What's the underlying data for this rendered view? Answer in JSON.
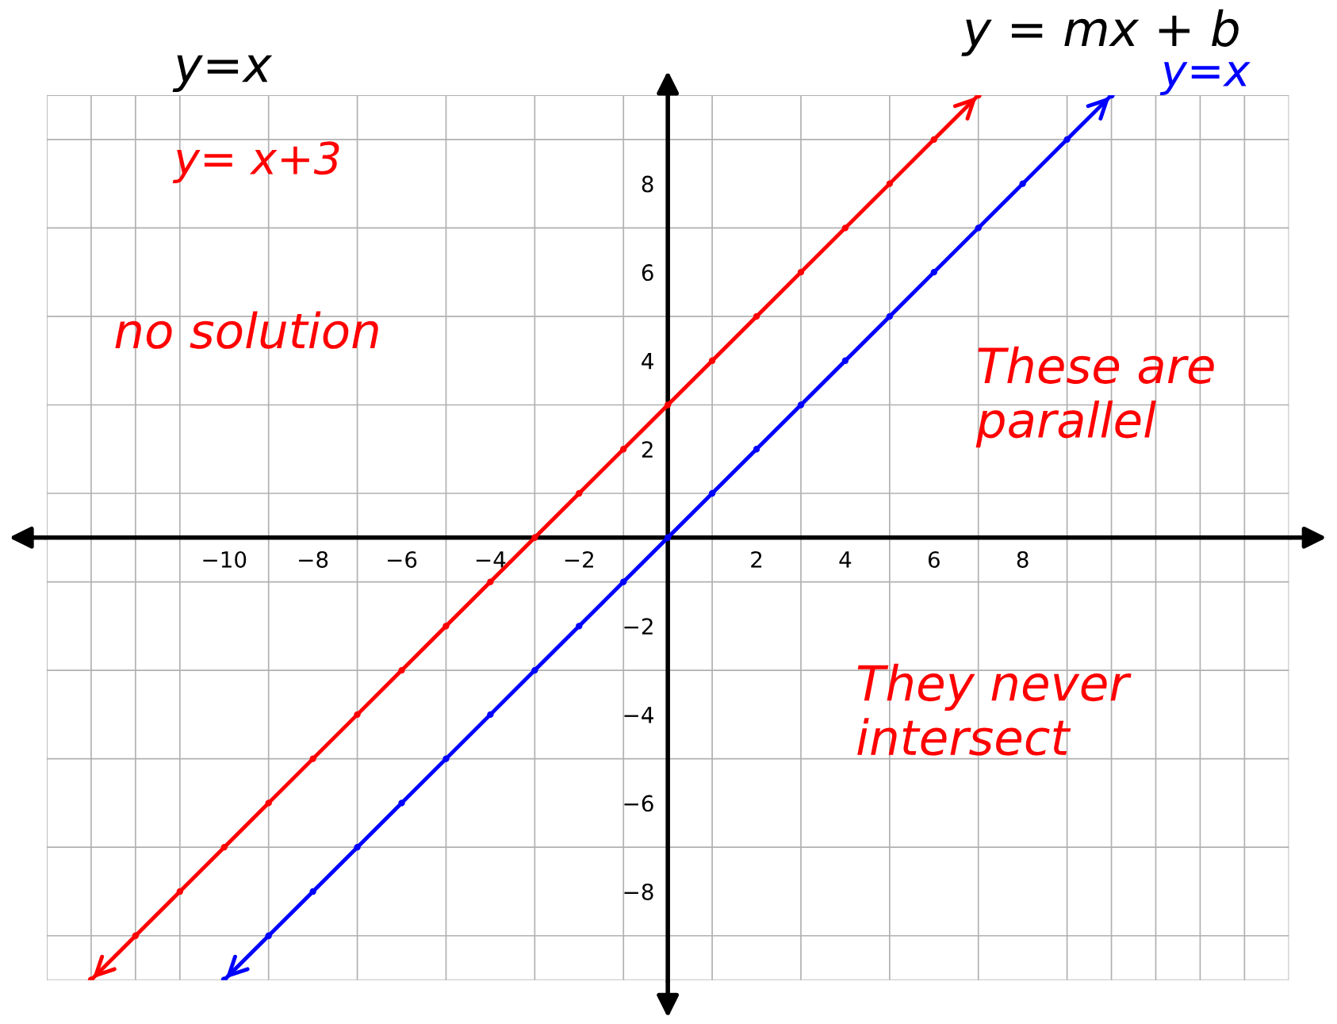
{
  "chart_data": {
    "type": "line",
    "x": [
      -13,
      -12,
      -11,
      -10,
      -9,
      -8,
      -7,
      -6,
      -5,
      -4,
      -3,
      -2,
      -1,
      0,
      1,
      2,
      3,
      4,
      5,
      6,
      7
    ],
    "series": [
      {
        "name": "y= x+3",
        "color": "#ff0000",
        "values": [
          -10,
          -9,
          -8,
          -7,
          -6,
          -5,
          -4,
          -3,
          -2,
          -1,
          0,
          1,
          2,
          3,
          4,
          5,
          6,
          7,
          8,
          9,
          10
        ]
      },
      {
        "name": "y=x",
        "color": "#0000ff",
        "x": [
          -10,
          -9,
          -8,
          -7,
          -6,
          -5,
          -4,
          -3,
          -2,
          -1,
          0,
          1,
          2,
          3,
          4,
          5,
          6,
          7,
          8,
          9,
          10
        ],
        "values": [
          -10,
          -9,
          -8,
          -7,
          -6,
          -5,
          -4,
          -3,
          -2,
          -1,
          0,
          1,
          2,
          3,
          4,
          5,
          6,
          7,
          8,
          9,
          10
        ]
      }
    ],
    "xlim": [
      -14,
      14
    ],
    "ylim": [
      -10,
      10
    ],
    "xticks": [
      -10,
      -8,
      -6,
      -4,
      -2,
      2,
      4,
      6,
      8
    ],
    "yticks": [
      -8,
      -6,
      -4,
      -2,
      2,
      4,
      6,
      8
    ],
    "grid": true,
    "marker": "circle",
    "line_style": "solid",
    "annotations": [
      "y=x",
      "y = mx + b",
      "no solution",
      "These are parallel",
      "They never intersect"
    ]
  }
}
